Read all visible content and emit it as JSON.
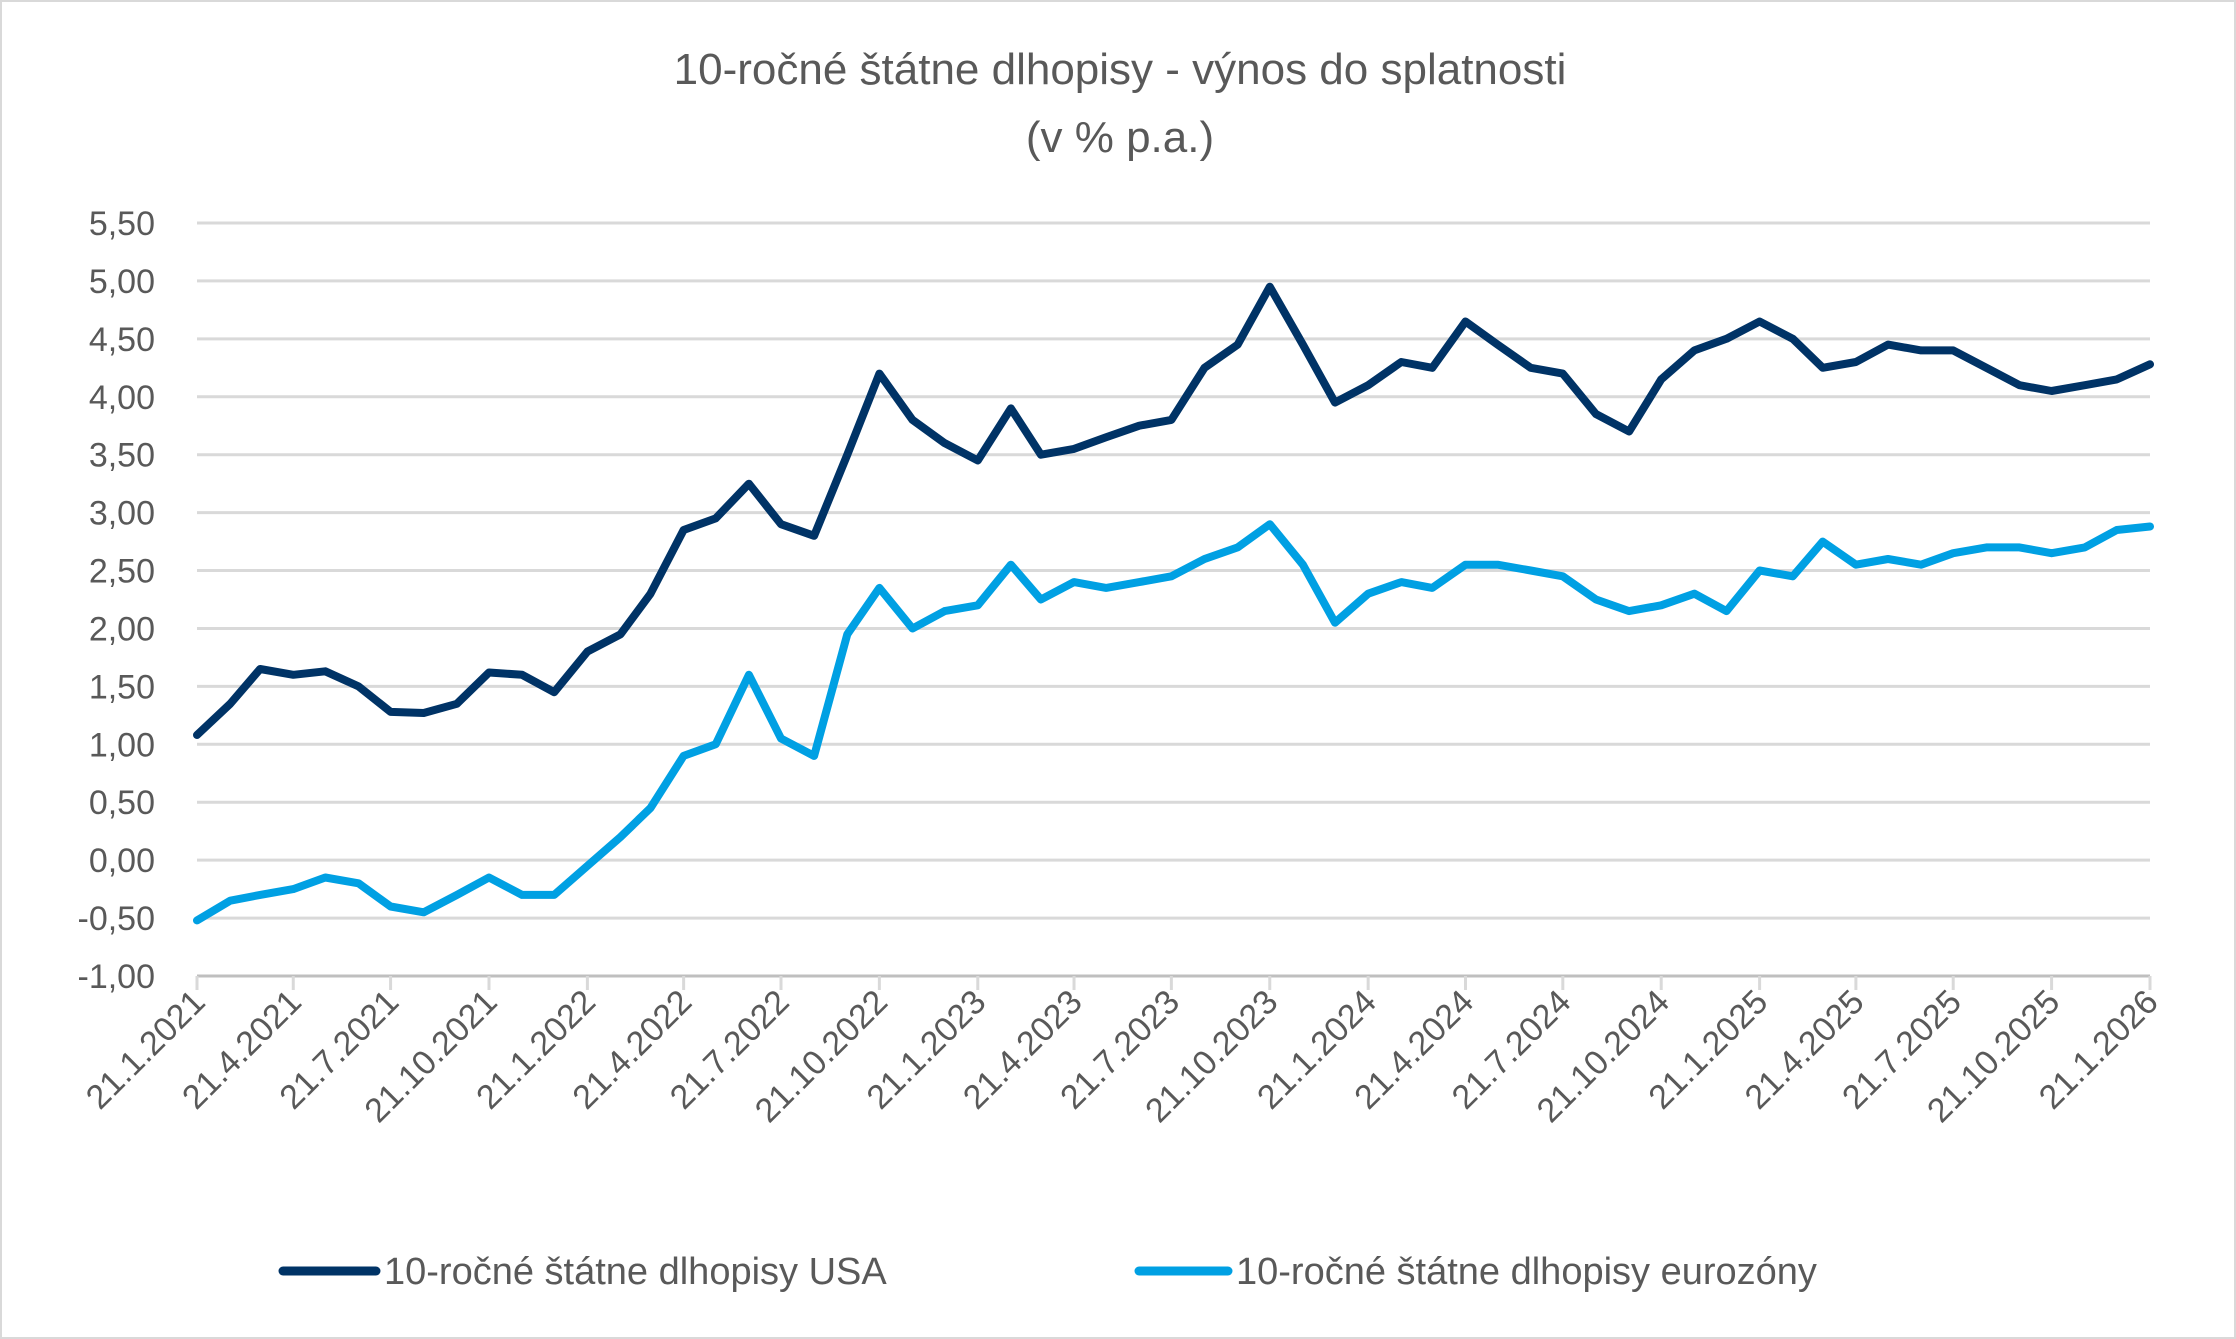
{
  "chart_data": {
    "type": "line",
    "title": "10-ročné štátne dlhopisy - výnos do splatnosti",
    "subtitle": "(v % p.a.)",
    "xlabel": "",
    "ylabel": "",
    "ylim": [
      -1.0,
      5.5
    ],
    "yticks": [
      "5,50",
      "5,00",
      "4,50",
      "4,00",
      "3,50",
      "3,00",
      "2,50",
      "2,00",
      "1,50",
      "1,00",
      "0,50",
      "0,00",
      "-0,50",
      "-1,00"
    ],
    "xticks": [
      "21.1.2021",
      "21.4.2021",
      "21.7.2021",
      "21.10.2021",
      "21.1.2022",
      "21.4.2022",
      "21.7.2022",
      "21.10.2022",
      "21.1.2023",
      "21.4.2023",
      "21.7.2023",
      "21.10.2023",
      "21.1.2024",
      "21.4.2024",
      "21.7.2024",
      "21.10.2024",
      "21.1.2025",
      "21.4.2025",
      "21.7.2025",
      "21.10.2025",
      "21.1.2026"
    ],
    "xrange": [
      "21.1.2021",
      "21.1.2026"
    ],
    "grid": true,
    "legend_position": "bottom",
    "x": [
      "21.1.2021",
      "21.2.2021",
      "21.3.2021",
      "21.4.2021",
      "21.5.2021",
      "21.6.2021",
      "21.7.2021",
      "21.8.2021",
      "21.9.2021",
      "21.10.2021",
      "21.11.2021",
      "21.12.2021",
      "21.1.2022",
      "21.2.2022",
      "21.3.2022",
      "21.4.2022",
      "21.5.2022",
      "21.6.2022",
      "21.7.2022",
      "21.8.2022",
      "21.9.2022",
      "21.10.2022",
      "21.11.2022",
      "21.12.2022",
      "21.1.2023",
      "21.2.2023",
      "21.3.2023",
      "21.4.2023",
      "21.5.2023",
      "21.6.2023",
      "21.7.2023",
      "21.8.2023",
      "21.9.2023",
      "21.10.2023",
      "21.11.2023",
      "21.12.2023",
      "21.1.2024",
      "21.2.2024",
      "21.3.2024",
      "21.4.2024",
      "21.5.2024",
      "21.6.2024",
      "21.7.2024",
      "21.8.2024",
      "21.9.2024",
      "21.10.2024",
      "21.11.2024",
      "21.12.2024",
      "21.1.2025",
      "21.2.2025",
      "21.3.2025",
      "21.4.2025",
      "21.5.2025",
      "21.6.2025",
      "21.7.2025",
      "21.8.2025",
      "21.9.2025",
      "21.10.2025",
      "21.11.2025",
      "21.12.2025",
      "21.1.2026"
    ],
    "series": [
      {
        "name": "10-ročné štátne dlhopisy USA",
        "color": "#003366",
        "values": [
          1.08,
          1.35,
          1.65,
          1.6,
          1.63,
          1.5,
          1.28,
          1.27,
          1.35,
          1.62,
          1.6,
          1.45,
          1.8,
          1.95,
          2.3,
          2.85,
          2.95,
          3.25,
          2.9,
          2.8,
          3.5,
          4.2,
          3.8,
          3.6,
          3.45,
          3.9,
          3.5,
          3.55,
          3.65,
          3.75,
          3.8,
          4.25,
          4.45,
          4.95,
          4.45,
          3.95,
          4.1,
          4.3,
          4.25,
          4.65,
          4.45,
          4.25,
          4.2,
          3.85,
          3.7,
          4.15,
          4.4,
          4.5,
          4.65,
          4.5,
          4.25,
          4.3,
          4.45,
          4.4,
          4.4,
          4.25,
          4.1,
          4.05,
          4.1,
          4.15,
          4.28
        ]
      },
      {
        "name": "10-ročné štátne dlhopisy eurozóny",
        "color": "#00A0E3",
        "values": [
          -0.52,
          -0.35,
          -0.3,
          -0.25,
          -0.15,
          -0.2,
          -0.4,
          -0.45,
          -0.3,
          -0.15,
          -0.3,
          -0.3,
          -0.05,
          0.2,
          0.45,
          0.9,
          1.0,
          1.6,
          1.05,
          0.9,
          1.95,
          2.35,
          2.0,
          2.15,
          2.2,
          2.55,
          2.25,
          2.4,
          2.35,
          2.4,
          2.45,
          2.6,
          2.7,
          2.9,
          2.55,
          2.05,
          2.3,
          2.4,
          2.35,
          2.55,
          2.55,
          2.5,
          2.45,
          2.25,
          2.15,
          2.2,
          2.3,
          2.15,
          2.5,
          2.45,
          2.75,
          2.55,
          2.6,
          2.55,
          2.65,
          2.7,
          2.7,
          2.65,
          2.7,
          2.85,
          2.88
        ]
      }
    ]
  }
}
